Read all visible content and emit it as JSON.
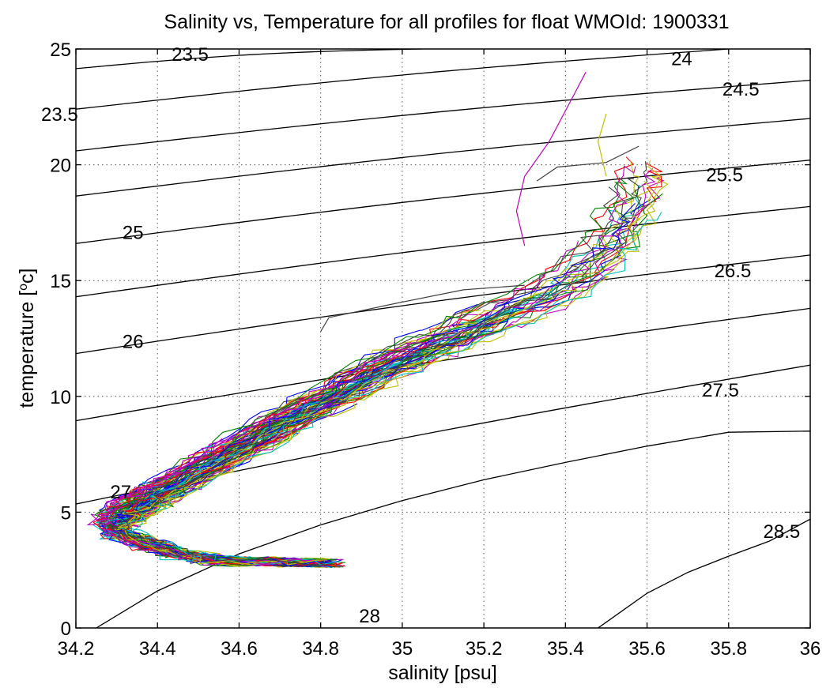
{
  "chart_data": {
    "type": "line",
    "title": "Salinity vs, Temperature for all profiles for float WMOId: 1900331",
    "xlabel": "salinity [psu]",
    "ylabel_text": "temperature [",
    "ylabel_sup": "o",
    "ylabel_end": "c]",
    "xlim": [
      34.2,
      36
    ],
    "ylim": [
      0,
      25
    ],
    "xticks": [
      34.2,
      34.4,
      34.6,
      34.8,
      35,
      35.2,
      35.4,
      35.6,
      35.8,
      36
    ],
    "xtick_labels": [
      "34.2",
      "34.4",
      "34.6",
      "34.8",
      "35",
      "35.2",
      "35.4",
      "35.6",
      "35.8",
      "36"
    ],
    "yticks": [
      0,
      5,
      10,
      15,
      20,
      25
    ],
    "ytick_labels": [
      "0",
      "5",
      "10",
      "15",
      "20",
      "25"
    ],
    "grid": true,
    "density_contours": [
      {
        "level": 23.5,
        "left": [
          34.2,
          24.15
        ],
        "right": [
          35.05,
          25.0
        ]
      },
      {
        "level": 24.0,
        "left": [
          34.2,
          22.4
        ],
        "right": [
          35.8,
          25.0
        ]
      },
      {
        "level": 24.5,
        "left": [
          34.2,
          20.6
        ],
        "right": [
          36.0,
          23.65
        ]
      },
      {
        "level": 25.0,
        "left": [
          34.2,
          18.65
        ],
        "right": [
          36.0,
          22.0
        ]
      },
      {
        "level": 25.5,
        "left": [
          34.2,
          16.6
        ],
        "right": [
          36.0,
          20.2
        ]
      },
      {
        "level": 26.0,
        "left": [
          34.2,
          14.3
        ],
        "right": [
          36.0,
          18.2
        ]
      },
      {
        "level": 26.5,
        "left": [
          34.2,
          11.85
        ],
        "right": [
          36.0,
          16.1
        ]
      },
      {
        "level": 27.0,
        "left": [
          34.2,
          8.95
        ],
        "right": [
          36.0,
          13.8
        ]
      },
      {
        "level": 27.5,
        "left": [
          34.2,
          5.35
        ],
        "right": [
          36.0,
          11.35
        ]
      },
      {
        "level": 28.0,
        "points": [
          [
            34.25,
            0
          ],
          [
            34.4,
            1.6
          ],
          [
            34.6,
            3.2
          ],
          [
            34.8,
            4.45
          ],
          [
            35.0,
            5.5
          ],
          [
            35.2,
            6.4
          ],
          [
            35.4,
            7.15
          ],
          [
            35.6,
            7.85
          ],
          [
            35.8,
            8.45
          ],
          [
            36.0,
            8.5
          ]
        ]
      },
      {
        "level": 28.5,
        "points": [
          [
            35.48,
            0
          ],
          [
            35.6,
            1.5
          ],
          [
            35.7,
            2.4
          ],
          [
            35.8,
            3.1
          ],
          [
            35.9,
            3.75
          ],
          [
            36.0,
            4.7
          ]
        ]
      }
    ],
    "contour_labels": [
      {
        "text": "23.5",
        "x": 34.48,
        "y": 24.8
      },
      {
        "text": "23.5",
        "x": 34.16,
        "y": 22.2
      },
      {
        "text": "24",
        "x": 35.685,
        "y": 24.6
      },
      {
        "text": "24.5",
        "x": 35.83,
        "y": 23.3
      },
      {
        "text": "25",
        "x": 34.34,
        "y": 17.1
      },
      {
        "text": "25.5",
        "x": 35.79,
        "y": 19.6
      },
      {
        "text": "26",
        "x": 34.34,
        "y": 12.4
      },
      {
        "text": "26.5",
        "x": 35.81,
        "y": 15.45
      },
      {
        "text": "27",
        "x": 34.31,
        "y": 5.9
      },
      {
        "text": "27.5",
        "x": 35.78,
        "y": 10.3
      },
      {
        "text": "28",
        "x": 34.92,
        "y": 0.55
      },
      {
        "text": "28.5",
        "x": 35.93,
        "y": 4.2
      }
    ],
    "profile_colors": [
      "#0000ff",
      "#008000",
      "#ff0000",
      "#00bfbf",
      "#bf00bf",
      "#bfbf00",
      "#404040"
    ],
    "profile_count": 84,
    "mean_profile": [
      [
        34.82,
        2.8
      ],
      [
        34.7,
        2.85
      ],
      [
        34.55,
        2.9
      ],
      [
        34.45,
        3.2
      ],
      [
        34.38,
        3.6
      ],
      [
        34.3,
        4.1
      ],
      [
        34.3,
        4.6
      ],
      [
        34.33,
        5.1
      ],
      [
        34.38,
        5.6
      ],
      [
        34.45,
        6.3
      ],
      [
        34.55,
        7.3
      ],
      [
        34.65,
        8.3
      ],
      [
        34.75,
        9.3
      ],
      [
        34.85,
        10.2
      ],
      [
        34.95,
        11.2
      ],
      [
        35.05,
        12.0
      ],
      [
        35.15,
        12.8
      ],
      [
        35.25,
        13.6
      ],
      [
        35.35,
        14.4
      ],
      [
        35.42,
        15.2
      ],
      [
        35.48,
        16.1
      ],
      [
        35.52,
        17.0
      ],
      [
        35.55,
        18.0
      ],
      [
        35.57,
        19.0
      ],
      [
        35.58,
        20.0
      ]
    ],
    "special_traces": [
      {
        "color": "#bf00bf",
        "points": [
          [
            35.45,
            24.0
          ],
          [
            35.42,
            23.0
          ],
          [
            35.36,
            21.0
          ],
          [
            35.3,
            19.5
          ],
          [
            35.28,
            18.0
          ],
          [
            35.3,
            16.5
          ]
        ]
      },
      {
        "color": "#404040",
        "points": [
          [
            34.8,
            12.8
          ],
          [
            34.82,
            13.4
          ],
          [
            34.98,
            14.0
          ],
          [
            35.15,
            14.6
          ],
          [
            35.3,
            14.8
          ]
        ]
      },
      {
        "color": "#404040",
        "points": [
          [
            35.33,
            19.3
          ],
          [
            35.38,
            19.9
          ],
          [
            35.5,
            20.1
          ],
          [
            35.58,
            20.8
          ]
        ]
      },
      {
        "color": "#bfbf00",
        "points": [
          [
            35.5,
            22.2
          ],
          [
            35.48,
            21.0
          ],
          [
            35.5,
            19.5
          ]
        ]
      }
    ]
  }
}
